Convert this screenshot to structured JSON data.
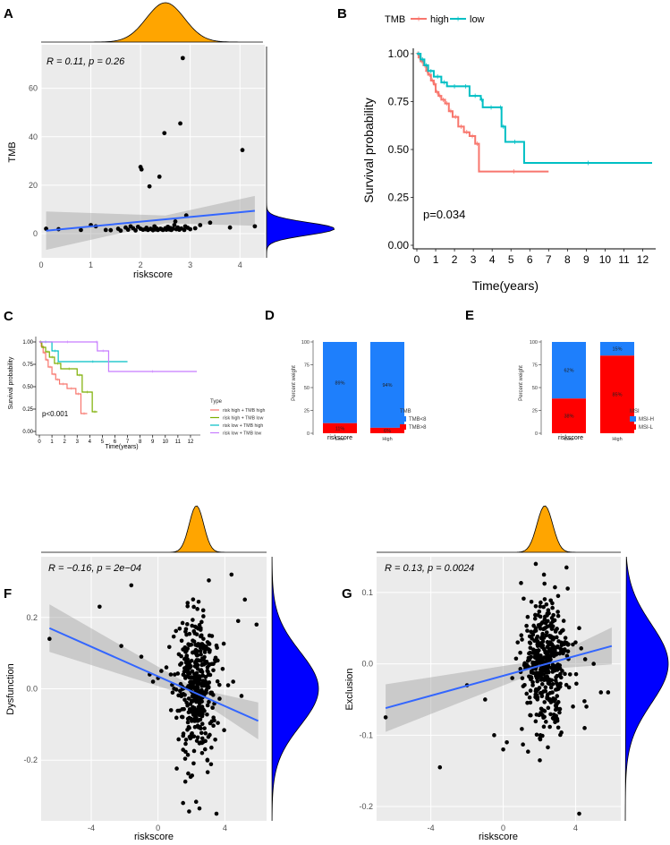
{
  "panel_labels": [
    "A",
    "B",
    "C",
    "D",
    "E",
    "F",
    "G"
  ],
  "chart_data": [
    {
      "panel": "A",
      "type": "scatter",
      "xlabel": "riskscore",
      "ylabel": "TMB",
      "xlim": [
        0,
        4.5
      ],
      "ylim": [
        -10,
        78
      ],
      "xticks": [
        "0",
        "1",
        "2",
        "3",
        "4"
      ],
      "yticks": [
        "0",
        "20",
        "40",
        "60"
      ],
      "annotation": "R = 0.11, p = 0.26",
      "regression": {
        "x0": 0.1,
        "y0": 1.2,
        "x1": 4.3,
        "y1": 9.4
      },
      "points": [
        [
          0.1,
          2
        ],
        [
          0.35,
          1.8
        ],
        [
          0.8,
          1.5
        ],
        [
          1.0,
          3.5
        ],
        [
          1.1,
          3
        ],
        [
          1.3,
          1.5
        ],
        [
          1.4,
          1.4
        ],
        [
          1.55,
          2
        ],
        [
          1.6,
          1.2
        ],
        [
          1.7,
          2.5
        ],
        [
          1.75,
          1.6
        ],
        [
          1.8,
          3
        ],
        [
          1.85,
          2.2
        ],
        [
          1.9,
          1.3
        ],
        [
          1.95,
          2.8
        ],
        [
          2.0,
          2
        ],
        [
          2.0,
          27.5
        ],
        [
          2.02,
          26.5
        ],
        [
          2.05,
          1.6
        ],
        [
          2.1,
          1.8
        ],
        [
          2.12,
          2.4
        ],
        [
          2.15,
          1.5
        ],
        [
          2.18,
          19.5
        ],
        [
          2.2,
          2
        ],
        [
          2.22,
          1.8
        ],
        [
          2.25,
          1.4
        ],
        [
          2.28,
          3
        ],
        [
          2.3,
          1.7
        ],
        [
          2.32,
          2.2
        ],
        [
          2.35,
          1.5
        ],
        [
          2.38,
          23.5
        ],
        [
          2.4,
          2
        ],
        [
          2.42,
          1.8
        ],
        [
          2.45,
          1.5
        ],
        [
          2.48,
          41.5
        ],
        [
          2.5,
          2.2
        ],
        [
          2.52,
          1.6
        ],
        [
          2.55,
          2.8
        ],
        [
          2.58,
          1.7
        ],
        [
          2.6,
          2.3
        ],
        [
          2.62,
          1.5
        ],
        [
          2.65,
          2
        ],
        [
          2.68,
          3.5
        ],
        [
          2.7,
          5
        ],
        [
          2.72,
          1.8
        ],
        [
          2.75,
          2.5
        ],
        [
          2.78,
          1.6
        ],
        [
          2.8,
          45.5
        ],
        [
          2.82,
          2.1
        ],
        [
          2.85,
          72.5
        ],
        [
          2.88,
          1.5
        ],
        [
          2.9,
          3
        ],
        [
          2.92,
          7.5
        ],
        [
          2.95,
          2.4
        ],
        [
          3.0,
          1.8
        ],
        [
          3.1,
          2.2
        ],
        [
          3.2,
          3.5
        ],
        [
          3.4,
          4.5
        ],
        [
          3.8,
          2.5
        ],
        [
          4.05,
          34.5
        ],
        [
          4.3,
          3
        ]
      ],
      "marginal_x": {
        "color": "#ffa500",
        "mode": 2.5
      },
      "marginal_y": {
        "color": "#0000ff",
        "mode": 2
      }
    },
    {
      "panel": "B",
      "type": "line",
      "subtype": "kaplan-meier",
      "title": "",
      "legend_title": "TMB",
      "legend": [
        "high",
        "low"
      ],
      "xlabel": "Time(years)",
      "ylabel": "Survival probability",
      "xlim": [
        0,
        12.5
      ],
      "ylim": [
        0,
        1
      ],
      "xticks": [
        "0",
        "1",
        "2",
        "3",
        "4",
        "5",
        "6",
        "7",
        "8",
        "9",
        "10",
        "11",
        "12"
      ],
      "yticks": [
        "0.00",
        "0.25",
        "0.50",
        "0.75",
        "1.00"
      ],
      "annotation": "p=0.034",
      "series": [
        {
          "name": "high",
          "color": "#f8766d",
          "steps": [
            [
              0,
              1.0
            ],
            [
              0.1,
              0.98
            ],
            [
              0.2,
              0.96
            ],
            [
              0.35,
              0.94
            ],
            [
              0.5,
              0.91
            ],
            [
              0.6,
              0.89
            ],
            [
              0.75,
              0.86
            ],
            [
              0.9,
              0.84
            ],
            [
              1.0,
              0.8
            ],
            [
              1.15,
              0.78
            ],
            [
              1.3,
              0.76
            ],
            [
              1.5,
              0.74
            ],
            [
              1.7,
              0.7
            ],
            [
              1.9,
              0.67
            ],
            [
              2.2,
              0.62
            ],
            [
              2.5,
              0.59
            ],
            [
              2.8,
              0.57
            ],
            [
              3.1,
              0.53
            ],
            [
              3.3,
              0.385
            ],
            [
              7.0,
              0.385
            ]
          ]
        },
        {
          "name": "low",
          "color": "#00bfc4",
          "steps": [
            [
              0,
              1.0
            ],
            [
              0.2,
              0.97
            ],
            [
              0.4,
              0.94
            ],
            [
              0.6,
              0.91
            ],
            [
              0.9,
              0.88
            ],
            [
              1.3,
              0.85
            ],
            [
              1.6,
              0.83
            ],
            [
              2.4,
              0.83
            ],
            [
              2.8,
              0.78
            ],
            [
              3.4,
              0.76
            ],
            [
              3.5,
              0.72
            ],
            [
              4.4,
              0.72
            ],
            [
              4.5,
              0.62
            ],
            [
              4.7,
              0.54
            ],
            [
              5.7,
              0.43
            ],
            [
              12.5,
              0.43
            ]
          ]
        }
      ]
    },
    {
      "panel": "C",
      "type": "line",
      "subtype": "kaplan-meier",
      "legend_title": "Type",
      "legend": [
        "risk high + TMB high",
        "risk high + TMB low",
        "risk low + TMB high",
        "risk low + TMB low"
      ],
      "xlabel": "Time(years)",
      "ylabel": "Survival probability",
      "xlim": [
        0,
        12.5
      ],
      "ylim": [
        0,
        1
      ],
      "xticks": [
        "0",
        "1",
        "2",
        "3",
        "4",
        "5",
        "6",
        "7",
        "8",
        "9",
        "10",
        "11",
        "12"
      ],
      "yticks": [
        "0.00",
        "0.25",
        "0.50",
        "0.75",
        "1.00"
      ],
      "annotation": "p<0.001",
      "series": [
        {
          "name": "risk high + TMB high",
          "color": "#f8766d",
          "steps": [
            [
              0,
              1.0
            ],
            [
              0.15,
              0.95
            ],
            [
              0.3,
              0.88
            ],
            [
              0.5,
              0.8
            ],
            [
              0.7,
              0.72
            ],
            [
              1.0,
              0.64
            ],
            [
              1.3,
              0.58
            ],
            [
              1.6,
              0.53
            ],
            [
              2.2,
              0.48
            ],
            [
              2.9,
              0.42
            ],
            [
              3.3,
              0.2
            ],
            [
              3.8,
              0.2
            ]
          ]
        },
        {
          "name": "risk high + TMB low",
          "color": "#7cae00",
          "steps": [
            [
              0,
              1.0
            ],
            [
              0.2,
              0.94
            ],
            [
              0.5,
              0.89
            ],
            [
              0.8,
              0.83
            ],
            [
              1.2,
              0.76
            ],
            [
              1.7,
              0.7
            ],
            [
              3.0,
              0.63
            ],
            [
              3.4,
              0.44
            ],
            [
              4.2,
              0.22
            ],
            [
              4.6,
              0.22
            ]
          ]
        },
        {
          "name": "risk low + TMB high",
          "color": "#00bfc4",
          "steps": [
            [
              0,
              1.0
            ],
            [
              1.0,
              0.9
            ],
            [
              1.5,
              0.78
            ],
            [
              7.0,
              0.78
            ]
          ]
        },
        {
          "name": "risk low + TMB low",
          "color": "#c77cff",
          "steps": [
            [
              0,
              1.0
            ],
            [
              4.5,
              1.0
            ],
            [
              4.6,
              0.9
            ],
            [
              5.5,
              0.67
            ],
            [
              12.5,
              0.67
            ]
          ]
        }
      ]
    },
    {
      "panel": "D",
      "type": "bar",
      "subtype": "stacked-percent",
      "legend_title": "TMB",
      "categories": [
        "Low",
        "High"
      ],
      "xlabel": "riskscore",
      "ylabel": "Percent weight",
      "yticks": [
        "0",
        "25",
        "50",
        "75",
        "100"
      ],
      "ylim": [
        0,
        100
      ],
      "series": [
        {
          "name": "TMB<8",
          "color": "#1e7ffc",
          "values": [
            89,
            94
          ],
          "labels": [
            "89%",
            "94%"
          ]
        },
        {
          "name": "TMB>8",
          "color": "#ff0000",
          "values": [
            11,
            6
          ],
          "labels": [
            "11%",
            "6%"
          ]
        }
      ]
    },
    {
      "panel": "E",
      "type": "bar",
      "subtype": "stacked-percent",
      "legend_title": "MSI",
      "categories": [
        "Low",
        "High"
      ],
      "xlabel": "riskscore",
      "ylabel": "Percent weight",
      "yticks": [
        "0",
        "25",
        "50",
        "75",
        "100"
      ],
      "ylim": [
        0,
        100
      ],
      "series": [
        {
          "name": "MSI-H",
          "color": "#1e7ffc",
          "values": [
            62,
            15
          ],
          "labels": [
            "62%",
            "15%"
          ]
        },
        {
          "name": "MSI-L",
          "color": "#ff0000",
          "values": [
            38,
            85
          ],
          "labels": [
            "38%",
            "85%"
          ]
        }
      ]
    },
    {
      "panel": "F",
      "type": "scatter",
      "xlabel": "riskscore",
      "ylabel": "Dysfunction",
      "xlim": [
        -7,
        6.5
      ],
      "ylim": [
        -0.37,
        0.37
      ],
      "xticks": [
        "-4",
        "0",
        "4"
      ],
      "yticks": [
        "-0.2",
        "0.0",
        "0.2"
      ],
      "annotation": "R = −0.16, p = 2e−04",
      "regression": {
        "x0": -6.5,
        "y0": 0.17,
        "x1": 6,
        "y1": -0.09
      },
      "cloud": {
        "center_x": 2.3,
        "spread_x": 1.0,
        "center_y": 0.0,
        "spread_y": 0.1,
        "n": 420
      },
      "outliers": [
        [
          -6.5,
          0.14
        ],
        [
          -3.5,
          0.23
        ],
        [
          -2.2,
          0.12
        ],
        [
          -1.6,
          0.29
        ],
        [
          -1.0,
          0.09
        ],
        [
          -0.5,
          0.04
        ],
        [
          -0.3,
          0.02
        ],
        [
          0.0,
          0.03
        ],
        [
          0.2,
          0.05
        ],
        [
          0.5,
          0.06
        ],
        [
          1.0,
          0.04
        ],
        [
          4.4,
          0.32
        ],
        [
          5.2,
          0.25
        ],
        [
          4.8,
          0.19
        ],
        [
          5.9,
          0.18
        ],
        [
          4.5,
          0.02
        ],
        [
          4.2,
          0.01
        ],
        [
          5.0,
          -0.02
        ],
        [
          1.5,
          -0.32
        ],
        [
          3.5,
          -0.35
        ]
      ],
      "marginal_x": {
        "color": "#ffa500",
        "mode": 2.3
      },
      "marginal_y": {
        "color": "#0000ff",
        "mode": 0.0
      }
    },
    {
      "panel": "G",
      "type": "scatter",
      "xlabel": "riskscore",
      "ylabel": "Exclusion",
      "xlim": [
        -7,
        6.5
      ],
      "ylim": [
        -0.22,
        0.15
      ],
      "xticks": [
        "-4",
        "0",
        "4"
      ],
      "yticks": [
        "-0.2",
        "-0.1",
        "0.0",
        "0.1"
      ],
      "annotation": "R = 0.13, p = 0.0024",
      "regression": {
        "x0": -6.5,
        "y0": -0.062,
        "x1": 6,
        "y1": 0.025
      },
      "cloud": {
        "center_x": 2.3,
        "spread_x": 1.0,
        "center_y": 0.0,
        "spread_y": 0.045,
        "n": 420
      },
      "outliers": [
        [
          -6.5,
          -0.075
        ],
        [
          -3.5,
          -0.145
        ],
        [
          -2.0,
          -0.03
        ],
        [
          -1.0,
          -0.05
        ],
        [
          -0.5,
          -0.1
        ],
        [
          0.0,
          -0.12
        ],
        [
          0.2,
          -0.11
        ],
        [
          0.5,
          -0.02
        ],
        [
          0.8,
          0.03
        ],
        [
          1.0,
          0.04
        ],
        [
          4.0,
          0.03
        ],
        [
          4.2,
          0.05
        ],
        [
          5.0,
          0.0
        ],
        [
          5.4,
          -0.04
        ],
        [
          5.8,
          -0.04
        ],
        [
          4.6,
          -0.06
        ],
        [
          4.5,
          -0.09
        ],
        [
          4.2,
          -0.21
        ],
        [
          1.8,
          0.14
        ],
        [
          3.5,
          0.135
        ]
      ],
      "marginal_x": {
        "color": "#ffa500",
        "mode": 2.3
      },
      "marginal_y": {
        "color": "#0000ff",
        "mode": 0.0
      }
    }
  ]
}
